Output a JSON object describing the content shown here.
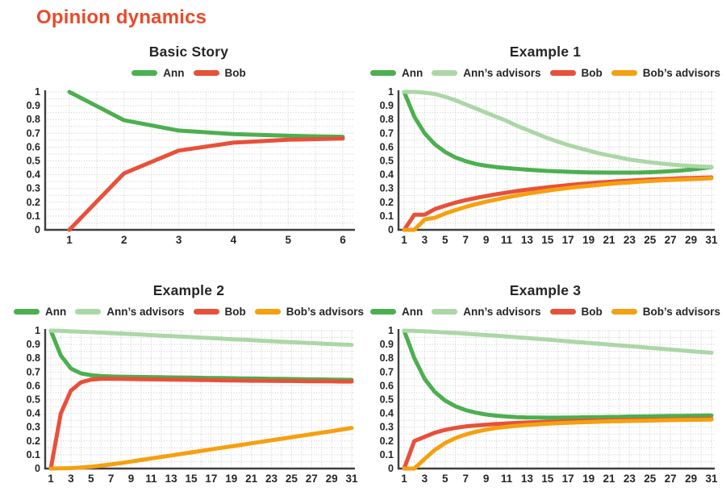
{
  "page_title": "Opinion dynamics",
  "colors": {
    "page_title_accent": "#E94A2B",
    "axis": "#3F3F3F",
    "grid": "#C9C9C9",
    "text": "#262626"
  },
  "chart_data": [
    {
      "id": "basic-story",
      "type": "line",
      "title": "Basic Story",
      "grid": "dotted",
      "legend_position": "top",
      "ylim": [
        0,
        1
      ],
      "y_tick_labels": [
        "0",
        "0.1",
        "0.2",
        "0.3",
        "0.4",
        "0.5",
        "0.6",
        "0.7",
        "0.8",
        "0.9",
        "1"
      ],
      "x": [
        1,
        2,
        3,
        4,
        5,
        6
      ],
      "x_tick_values": [
        1,
        2,
        3,
        4,
        5,
        6
      ],
      "series": [
        {
          "name": "Ann",
          "color": "#4CAF50",
          "values": [
            1.0,
            0.795,
            0.72,
            0.695,
            0.682,
            0.675
          ]
        },
        {
          "name": "Bob",
          "color": "#E8503A",
          "values": [
            0.0,
            0.41,
            0.575,
            0.632,
            0.653,
            0.662
          ]
        }
      ]
    },
    {
      "id": "example-1",
      "type": "line",
      "title": "Example 1",
      "grid": "dotted",
      "legend_position": "top",
      "ylim": [
        0,
        1
      ],
      "y_tick_labels": [
        "0",
        "0.1",
        "0.2",
        "0.3",
        "0.4",
        "0.5",
        "0.6",
        "0.7",
        "0.8",
        "0.9",
        "1"
      ],
      "x": [
        1,
        2,
        3,
        4,
        5,
        6,
        7,
        8,
        9,
        10,
        11,
        12,
        13,
        14,
        15,
        16,
        17,
        18,
        19,
        20,
        21,
        22,
        23,
        24,
        25,
        26,
        27,
        28,
        29,
        30,
        31
      ],
      "x_tick_values": [
        1,
        3,
        5,
        7,
        9,
        11,
        13,
        15,
        17,
        19,
        21,
        23,
        25,
        27,
        29,
        31
      ],
      "series": [
        {
          "name": "Ann",
          "color": "#4CAF50",
          "values": [
            1.0,
            0.82,
            0.7,
            0.62,
            0.565,
            0.525,
            0.498,
            0.478,
            0.465,
            0.455,
            0.448,
            0.442,
            0.436,
            0.431,
            0.427,
            0.424,
            0.421,
            0.419,
            0.417,
            0.416,
            0.415,
            0.415,
            0.415,
            0.416,
            0.418,
            0.421,
            0.425,
            0.43,
            0.437,
            0.445,
            0.455
          ]
        },
        {
          "name": "Ann’s advisors",
          "color": "#ABD7A6",
          "values": [
            1.0,
            1.0,
            0.995,
            0.985,
            0.965,
            0.94,
            0.91,
            0.88,
            0.85,
            0.82,
            0.79,
            0.755,
            0.725,
            0.695,
            0.665,
            0.64,
            0.615,
            0.595,
            0.575,
            0.555,
            0.54,
            0.525,
            0.51,
            0.5,
            0.49,
            0.481,
            0.474,
            0.468,
            0.463,
            0.459,
            0.457
          ]
        },
        {
          "name": "Bob",
          "color": "#E8503A",
          "values": [
            0,
            0.11,
            0.11,
            0.15,
            0.175,
            0.197,
            0.215,
            0.231,
            0.245,
            0.258,
            0.27,
            0.281,
            0.291,
            0.3,
            0.309,
            0.317,
            0.324,
            0.331,
            0.337,
            0.343,
            0.348,
            0.353,
            0.357,
            0.361,
            0.365,
            0.368,
            0.371,
            0.374,
            0.376,
            0.378,
            0.38
          ]
        },
        {
          "name": "Bob’s advisors",
          "color": "#F5A010",
          "values": [
            0,
            0,
            0.075,
            0.088,
            0.118,
            0.143,
            0.166,
            0.186,
            0.204,
            0.22,
            0.235,
            0.249,
            0.262,
            0.273,
            0.284,
            0.294,
            0.303,
            0.312,
            0.319,
            0.326,
            0.333,
            0.339,
            0.344,
            0.349,
            0.354,
            0.358,
            0.362,
            0.365,
            0.368,
            0.371,
            0.374
          ]
        }
      ]
    },
    {
      "id": "example-2",
      "type": "line",
      "title": "Example 2",
      "grid": "dotted",
      "legend_position": "top",
      "ylim": [
        0,
        1
      ],
      "y_tick_labels": [
        "0",
        "0.1",
        "0.2",
        "0.3",
        "0.4",
        "0.5",
        "0.6",
        "0.7",
        "0.8",
        "0.9",
        "1"
      ],
      "x": [
        1,
        2,
        3,
        4,
        5,
        6,
        7,
        8,
        9,
        10,
        11,
        12,
        13,
        14,
        15,
        16,
        17,
        18,
        19,
        20,
        21,
        22,
        23,
        24,
        25,
        26,
        27,
        28,
        29,
        30,
        31
      ],
      "x_tick_values": [
        1,
        3,
        5,
        7,
        9,
        11,
        13,
        15,
        17,
        19,
        21,
        23,
        25,
        27,
        29,
        31
      ],
      "series": [
        {
          "name": "Ann",
          "color": "#4CAF50",
          "values": [
            1.0,
            0.82,
            0.725,
            0.69,
            0.677,
            0.671,
            0.668,
            0.666,
            0.665,
            0.664,
            0.663,
            0.662,
            0.661,
            0.66,
            0.659,
            0.658,
            0.657,
            0.656,
            0.655,
            0.654,
            0.653,
            0.652,
            0.651,
            0.65,
            0.649,
            0.648,
            0.647,
            0.646,
            0.645,
            0.644,
            0.643
          ]
        },
        {
          "name": "Ann’s advisors",
          "color": "#ABD7A6",
          "values": [
            1.0,
            0.998,
            0.995,
            0.992,
            0.989,
            0.986,
            0.982,
            0.979,
            0.975,
            0.972,
            0.968,
            0.964,
            0.961,
            0.957,
            0.953,
            0.95,
            0.946,
            0.942,
            0.938,
            0.935,
            0.931,
            0.927,
            0.924,
            0.92,
            0.917,
            0.913,
            0.91,
            0.906,
            0.903,
            0.9,
            0.897
          ]
        },
        {
          "name": "Bob",
          "color": "#E8503A",
          "values": [
            0,
            0.4,
            0.565,
            0.625,
            0.645,
            0.65,
            0.651,
            0.65,
            0.649,
            0.648,
            0.647,
            0.646,
            0.645,
            0.644,
            0.643,
            0.642,
            0.641,
            0.64,
            0.639,
            0.638,
            0.637,
            0.637,
            0.636,
            0.635,
            0.635,
            0.634,
            0.633,
            0.633,
            0.632,
            0.631,
            0.631
          ]
        },
        {
          "name": "Bob’s advisors",
          "color": "#F5A010",
          "values": [
            0,
            0.001,
            0.003,
            0.007,
            0.013,
            0.021,
            0.03,
            0.04,
            0.051,
            0.062,
            0.073,
            0.084,
            0.095,
            0.106,
            0.117,
            0.128,
            0.139,
            0.15,
            0.161,
            0.172,
            0.183,
            0.194,
            0.205,
            0.216,
            0.227,
            0.238,
            0.249,
            0.26,
            0.271,
            0.283,
            0.295
          ]
        }
      ]
    },
    {
      "id": "example-3",
      "type": "line",
      "title": "Example 3",
      "grid": "dotted",
      "legend_position": "top",
      "ylim": [
        0,
        1
      ],
      "y_tick_labels": [
        "0",
        "0.1",
        "0.2",
        "0.3",
        "0.4",
        "0.5",
        "0.6",
        "0.7",
        "0.8",
        "0.9",
        "1"
      ],
      "x": [
        1,
        2,
        3,
        4,
        5,
        6,
        7,
        8,
        9,
        10,
        11,
        12,
        13,
        14,
        15,
        16,
        17,
        18,
        19,
        20,
        21,
        22,
        23,
        24,
        25,
        26,
        27,
        28,
        29,
        30,
        31
      ],
      "x_tick_values": [
        1,
        3,
        5,
        7,
        9,
        11,
        13,
        15,
        17,
        19,
        21,
        23,
        25,
        27,
        29,
        31
      ],
      "series": [
        {
          "name": "Ann",
          "color": "#4CAF50",
          "values": [
            1.0,
            0.8,
            0.65,
            0.555,
            0.493,
            0.452,
            0.424,
            0.405,
            0.392,
            0.383,
            0.377,
            0.373,
            0.371,
            0.37,
            0.369,
            0.369,
            0.37,
            0.371,
            0.372,
            0.373,
            0.374,
            0.375,
            0.377,
            0.378,
            0.379,
            0.38,
            0.381,
            0.382,
            0.383,
            0.384,
            0.385
          ]
        },
        {
          "name": "Ann’s advisors",
          "color": "#ABD7A6",
          "values": [
            1.0,
            0.998,
            0.995,
            0.991,
            0.987,
            0.983,
            0.978,
            0.973,
            0.968,
            0.963,
            0.958,
            0.952,
            0.947,
            0.941,
            0.935,
            0.929,
            0.923,
            0.917,
            0.911,
            0.905,
            0.899,
            0.893,
            0.887,
            0.881,
            0.875,
            0.869,
            0.863,
            0.857,
            0.851,
            0.845,
            0.84
          ]
        },
        {
          "name": "Bob",
          "color": "#E8503A",
          "values": [
            0,
            0.2,
            0.23,
            0.26,
            0.28,
            0.295,
            0.305,
            0.312,
            0.318,
            0.323,
            0.327,
            0.331,
            0.334,
            0.336,
            0.339,
            0.341,
            0.343,
            0.345,
            0.346,
            0.348,
            0.349,
            0.351,
            0.352,
            0.353,
            0.354,
            0.355,
            0.356,
            0.357,
            0.358,
            0.359,
            0.36
          ]
        },
        {
          "name": "Bob’s advisors",
          "color": "#F5A010",
          "values": [
            0,
            0,
            0.07,
            0.135,
            0.185,
            0.221,
            0.247,
            0.267,
            0.282,
            0.294,
            0.303,
            0.31,
            0.316,
            0.321,
            0.325,
            0.329,
            0.332,
            0.335,
            0.337,
            0.34,
            0.342,
            0.344,
            0.345,
            0.347,
            0.348,
            0.35,
            0.351,
            0.352,
            0.353,
            0.354,
            0.355
          ]
        }
      ]
    }
  ]
}
